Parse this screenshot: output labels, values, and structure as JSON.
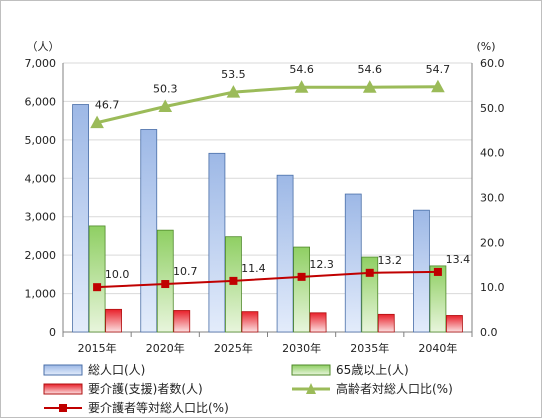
{
  "chart_data": {
    "type": "bar",
    "categories": [
      "2015年",
      "2020年",
      "2025年",
      "2030年",
      "2035年",
      "2040年"
    ],
    "y_left_unit": "（人）",
    "y_right_unit": "(%)",
    "ylim_left": [
      0,
      7000
    ],
    "ylim_right": [
      0,
      60
    ],
    "yticks_left": [
      "0",
      "1,000",
      "2,000",
      "3,000",
      "4,000",
      "5,000",
      "6,000",
      "7,000"
    ],
    "yticks_right": [
      "0.0",
      "10.0",
      "20.0",
      "30.0",
      "40.0",
      "50.0",
      "60.0"
    ],
    "grid": true,
    "legend_position": "bottom",
    "series": [
      {
        "name": "総人口(人)",
        "kind": "bar",
        "axis": "left",
        "color": "#9db8e6",
        "values": [
          5920,
          5270,
          4650,
          4080,
          3590,
          3170
        ]
      },
      {
        "name": "65歳以上(人)",
        "kind": "bar",
        "axis": "left",
        "color": "#8fcf63",
        "values": [
          2760,
          2650,
          2480,
          2210,
          1950,
          1720
        ]
      },
      {
        "name": "要介護(支援)者数(人)",
        "kind": "bar",
        "axis": "left",
        "color": "#e8202a",
        "values": [
          590,
          560,
          530,
          500,
          460,
          430
        ]
      },
      {
        "name": "高齢者対総人口比(%)",
        "kind": "line",
        "axis": "right",
        "color": "#9bbb59",
        "marker": "triangle",
        "values": [
          46.7,
          50.3,
          53.5,
          54.6,
          54.6,
          54.7
        ],
        "labels": [
          "46.7",
          "50.3",
          "53.5",
          "54.6",
          "54.6",
          "54.7"
        ]
      },
      {
        "name": "要介護者等対総人口比(%)",
        "kind": "line",
        "axis": "right",
        "color": "#c00000",
        "marker": "square",
        "values": [
          10.0,
          10.7,
          11.4,
          12.3,
          13.2,
          13.4
        ],
        "labels": [
          "10.0",
          "10.7",
          "11.4",
          "12.3",
          "13.2",
          "13.4"
        ]
      }
    ]
  }
}
